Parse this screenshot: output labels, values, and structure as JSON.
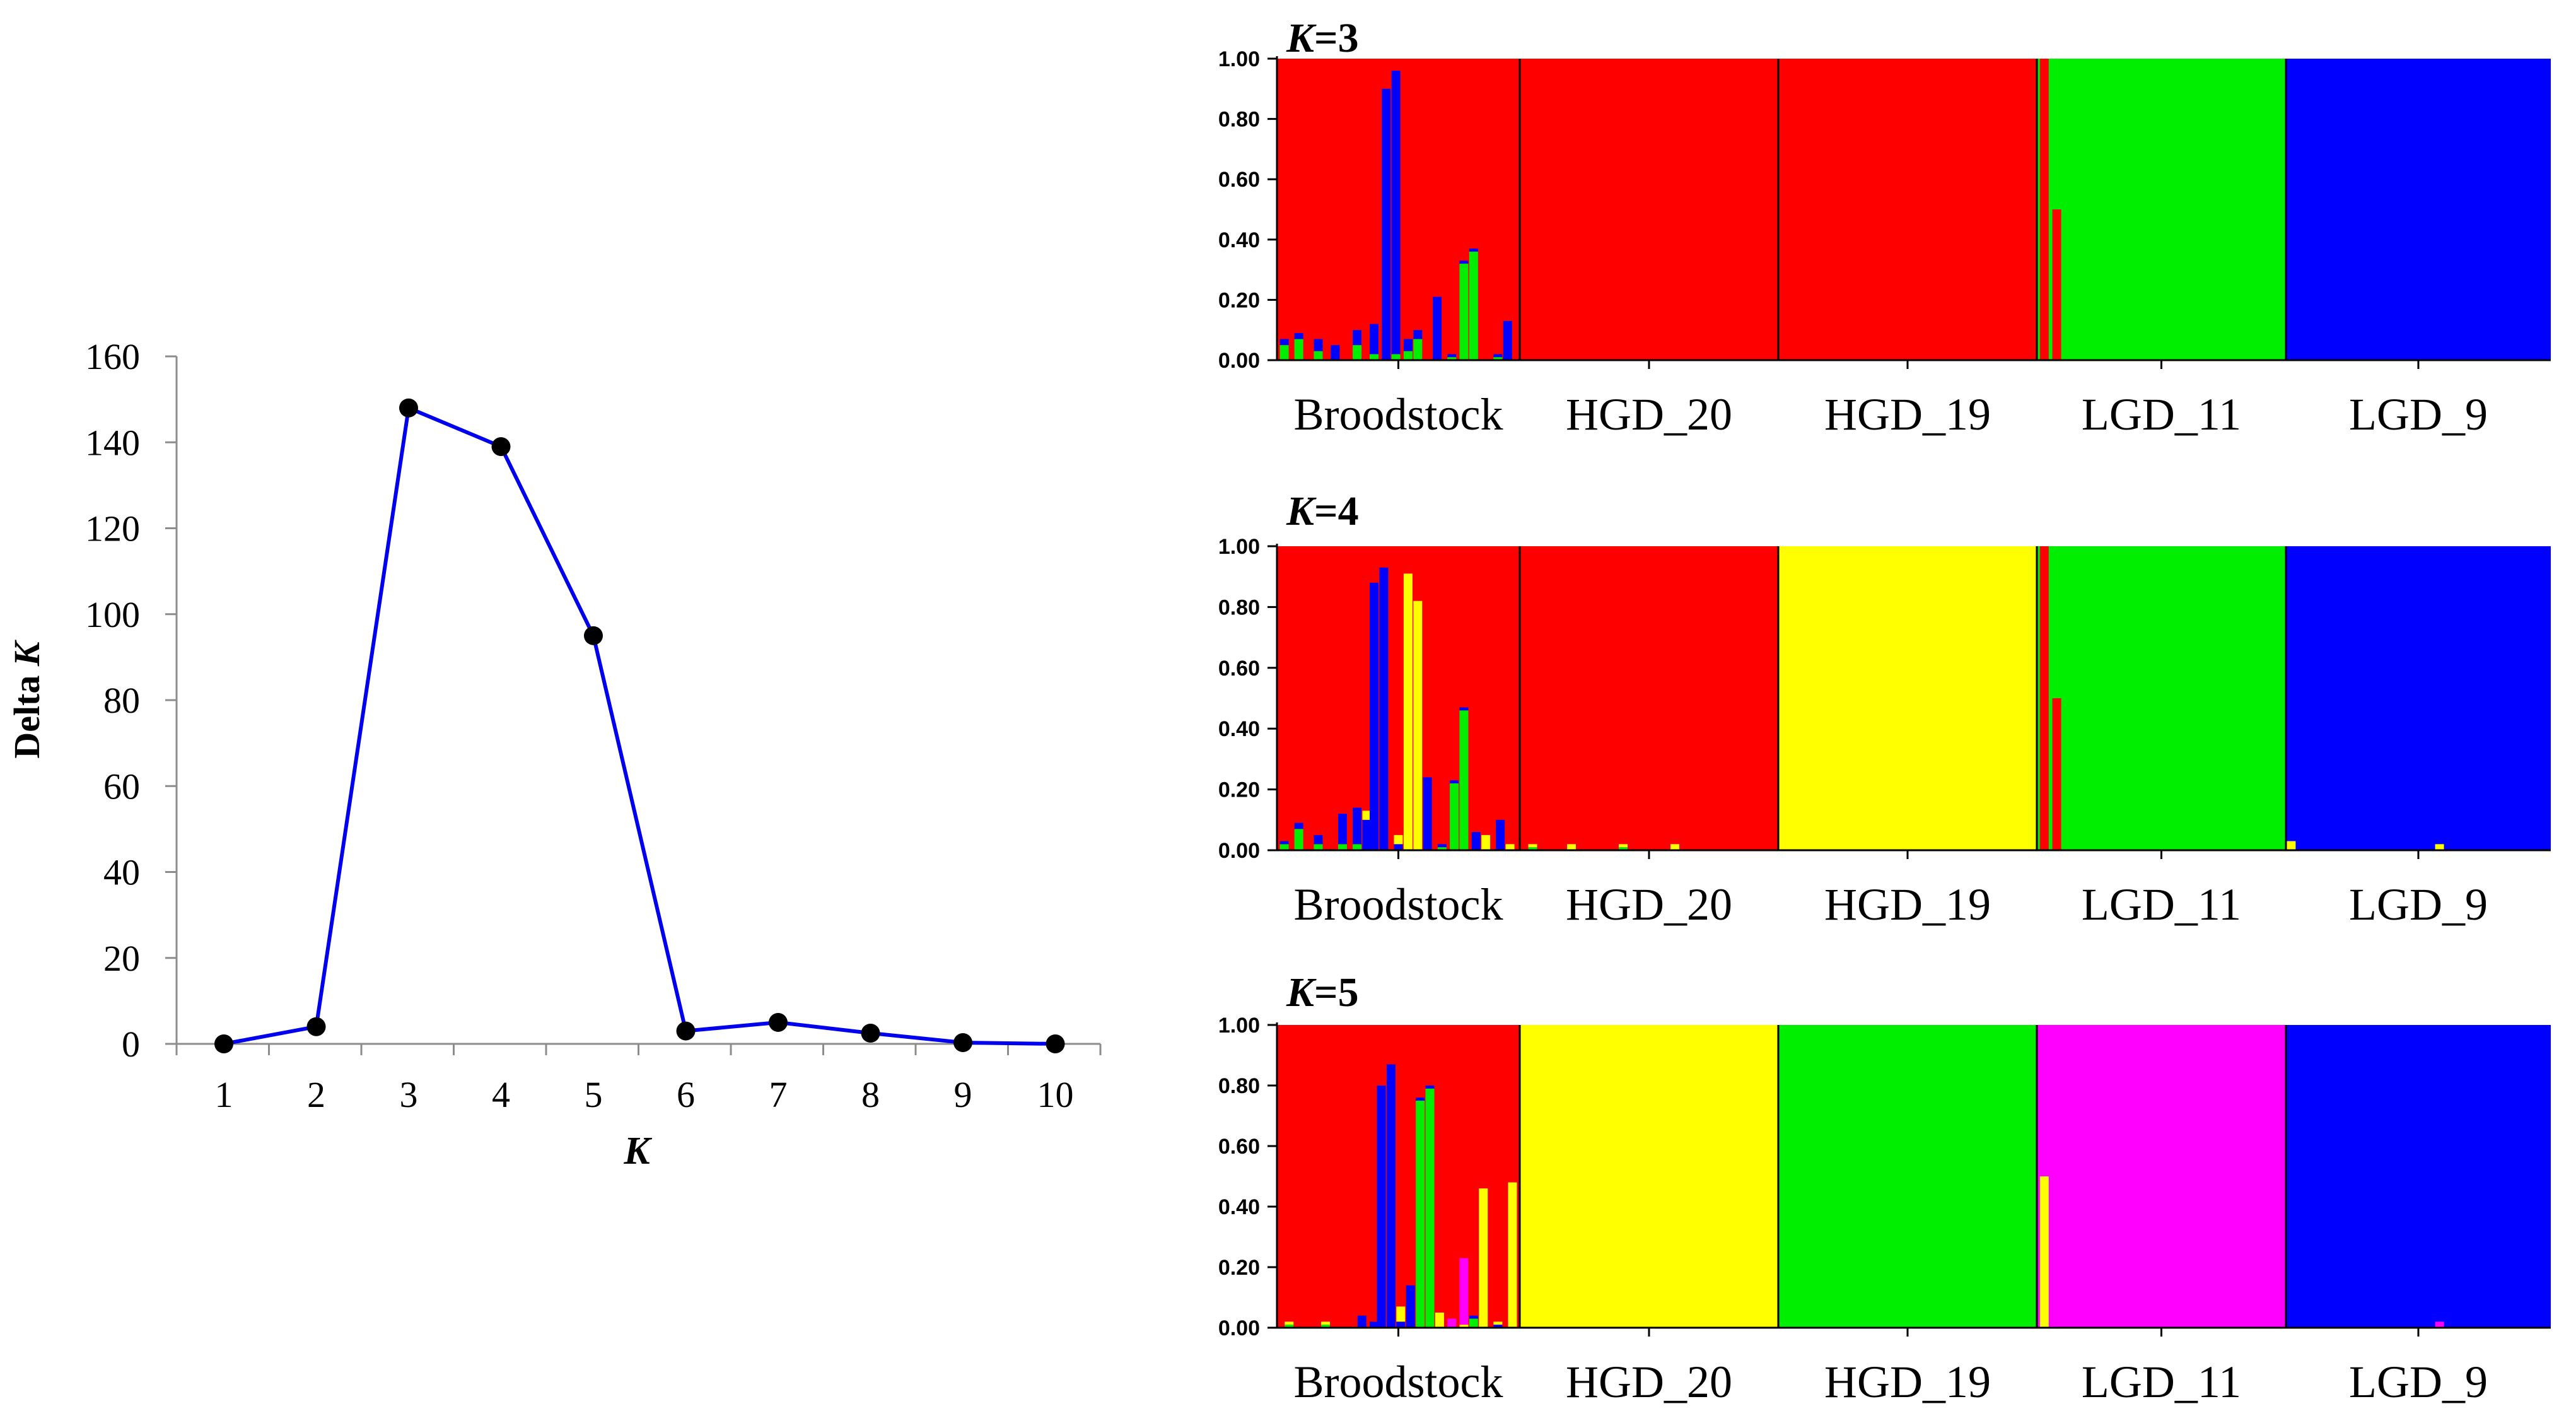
{
  "chart_data": [
    {
      "type": "line",
      "xlabel": "K",
      "ylabel_prefix": "Delta ",
      "ylabel_var": "K",
      "x": [
        1,
        2,
        3,
        4,
        5,
        6,
        7,
        8,
        9,
        10
      ],
      "x_tick_labels": [
        "1",
        "2",
        "3",
        "4",
        "5",
        "6",
        "7",
        "8",
        "9",
        "10"
      ],
      "y": [
        0,
        4,
        148,
        139,
        95,
        3,
        5,
        2.5,
        0.3,
        0
      ],
      "ylim": [
        0,
        160
      ],
      "y_tick_values": [
        0,
        20,
        40,
        60,
        80,
        100,
        120,
        140,
        160
      ],
      "y_tick_labels": [
        "0",
        "20",
        "40",
        "60",
        "80",
        "100",
        "120",
        "140",
        "160"
      ],
      "line_color": "#0000ee",
      "marker_color": "#000000"
    },
    {
      "type": "bar",
      "subtype": "stacked-admixture",
      "title_var": "K",
      "title_rest": "=3",
      "ylim": [
        0,
        1
      ],
      "y_tick_labels": [
        "0.00",
        "0.20",
        "0.40",
        "0.60",
        "0.80",
        "1.00"
      ],
      "populations": [
        "Broodstock",
        "HGD_20",
        "HGD_19",
        "LGD_11",
        "LGD_9"
      ],
      "cluster_colors": [
        "#ff0000",
        "#00ee00",
        "#0000ff"
      ],
      "population_base_cluster": [
        0,
        0,
        0,
        1,
        2
      ],
      "admixed_individuals": [
        {
          "pop": 0,
          "pos": 0.03,
          "fractions": {
            "1": 0.05,
            "2": 0.02
          }
        },
        {
          "pop": 0,
          "pos": 0.09,
          "fractions": {
            "1": 0.07,
            "2": 0.02
          }
        },
        {
          "pop": 0,
          "pos": 0.17,
          "fractions": {
            "1": 0.03,
            "2": 0.04
          }
        },
        {
          "pop": 0,
          "pos": 0.24,
          "fractions": {
            "2": 0.05
          }
        },
        {
          "pop": 0,
          "pos": 0.33,
          "fractions": {
            "1": 0.05,
            "2": 0.05
          }
        },
        {
          "pop": 0,
          "pos": 0.4,
          "fractions": {
            "1": 0.02,
            "2": 0.1
          }
        },
        {
          "pop": 0,
          "pos": 0.45,
          "fractions": {
            "2": 0.9
          }
        },
        {
          "pop": 0,
          "pos": 0.49,
          "fractions": {
            "1": 0.02,
            "2": 0.94
          }
        },
        {
          "pop": 0,
          "pos": 0.54,
          "fractions": {
            "1": 0.03,
            "2": 0.04
          }
        },
        {
          "pop": 0,
          "pos": 0.58,
          "fractions": {
            "1": 0.07,
            "2": 0.03
          }
        },
        {
          "pop": 0,
          "pos": 0.66,
          "fractions": {
            "2": 0.21
          }
        },
        {
          "pop": 0,
          "pos": 0.72,
          "fractions": {
            "1": 0.01,
            "2": 0.01
          }
        },
        {
          "pop": 0,
          "pos": 0.77,
          "fractions": {
            "1": 0.32,
            "2": 0.01
          }
        },
        {
          "pop": 0,
          "pos": 0.81,
          "fractions": {
            "1": 0.36,
            "2": 0.01
          }
        },
        {
          "pop": 0,
          "pos": 0.91,
          "fractions": {
            "1": 0.01,
            "2": 0.01
          }
        },
        {
          "pop": 0,
          "pos": 0.95,
          "fractions": {
            "2": 0.13
          }
        },
        {
          "pop": 3,
          "pos": 0.03,
          "fractions": {
            "0": 1.0
          }
        },
        {
          "pop": 3,
          "pos": 0.08,
          "fractions": {
            "0": 0.5
          }
        }
      ]
    },
    {
      "type": "bar",
      "subtype": "stacked-admixture",
      "title_var": "K",
      "title_rest": "=4",
      "ylim": [
        0,
        1
      ],
      "y_tick_labels": [
        "0.00",
        "0.20",
        "0.40",
        "0.60",
        "0.80",
        "1.00"
      ],
      "populations": [
        "Broodstock",
        "HGD_20",
        "HGD_19",
        "LGD_11",
        "LGD_9"
      ],
      "cluster_colors": [
        "#ff0000",
        "#00ee00",
        "#0000ff",
        "#ffff00"
      ],
      "population_base_cluster": [
        0,
        0,
        3,
        1,
        2
      ],
      "admixed_individuals": [
        {
          "pop": 0,
          "pos": 0.03,
          "fractions": {
            "1": 0.02,
            "2": 0.01
          }
        },
        {
          "pop": 0,
          "pos": 0.09,
          "fractions": {
            "1": 0.07,
            "2": 0.02
          }
        },
        {
          "pop": 0,
          "pos": 0.17,
          "fractions": {
            "1": 0.02,
            "2": 0.03
          }
        },
        {
          "pop": 0,
          "pos": 0.27,
          "fractions": {
            "1": 0.02,
            "2": 0.1
          }
        },
        {
          "pop": 0,
          "pos": 0.33,
          "fractions": {
            "1": 0.02,
            "2": 0.12
          }
        },
        {
          "pop": 0,
          "pos": 0.37,
          "fractions": {
            "3": 0.03,
            "2": 0.1
          }
        },
        {
          "pop": 0,
          "pos": 0.4,
          "fractions": {
            "2": 0.88
          }
        },
        {
          "pop": 0,
          "pos": 0.44,
          "fractions": {
            "2": 0.93
          }
        },
        {
          "pop": 0,
          "pos": 0.5,
          "fractions": {
            "3": 0.03,
            "2": 0.02
          }
        },
        {
          "pop": 0,
          "pos": 0.54,
          "fractions": {
            "3": 0.91
          }
        },
        {
          "pop": 0,
          "pos": 0.58,
          "fractions": {
            "3": 0.82
          }
        },
        {
          "pop": 0,
          "pos": 0.62,
          "fractions": {
            "2": 0.24
          }
        },
        {
          "pop": 0,
          "pos": 0.68,
          "fractions": {
            "1": 0.01,
            "2": 0.01
          }
        },
        {
          "pop": 0,
          "pos": 0.73,
          "fractions": {
            "1": 0.22,
            "2": 0.01
          }
        },
        {
          "pop": 0,
          "pos": 0.77,
          "fractions": {
            "1": 0.46,
            "2": 0.01
          }
        },
        {
          "pop": 0,
          "pos": 0.82,
          "fractions": {
            "2": 0.06
          }
        },
        {
          "pop": 0,
          "pos": 0.86,
          "fractions": {
            "3": 0.05
          }
        },
        {
          "pop": 0,
          "pos": 0.92,
          "fractions": {
            "2": 0.1
          }
        },
        {
          "pop": 0,
          "pos": 0.96,
          "fractions": {
            "3": 0.02
          }
        },
        {
          "pop": 1,
          "pos": 0.05,
          "fractions": {
            "3": 0.01,
            "1": 0.01
          }
        },
        {
          "pop": 1,
          "pos": 0.2,
          "fractions": {
            "3": 0.02
          }
        },
        {
          "pop": 1,
          "pos": 0.4,
          "fractions": {
            "3": 0.01,
            "1": 0.01
          }
        },
        {
          "pop": 1,
          "pos": 0.6,
          "fractions": {
            "3": 0.02
          }
        },
        {
          "pop": 3,
          "pos": 0.03,
          "fractions": {
            "0": 1.0
          }
        },
        {
          "pop": 3,
          "pos": 0.08,
          "fractions": {
            "0": 0.5
          }
        },
        {
          "pop": 4,
          "pos": 0.02,
          "fractions": {
            "3": 0.03
          }
        },
        {
          "pop": 4,
          "pos": 0.58,
          "fractions": {
            "3": 0.02
          }
        }
      ]
    },
    {
      "type": "bar",
      "subtype": "stacked-admixture",
      "title_var": "K",
      "title_rest": "=5",
      "ylim": [
        0,
        1
      ],
      "y_tick_labels": [
        "0.00",
        "0.20",
        "0.40",
        "0.60",
        "0.80",
        "1.00"
      ],
      "populations": [
        "Broodstock",
        "HGD_20",
        "HGD_19",
        "LGD_11",
        "LGD_9"
      ],
      "cluster_colors": [
        "#ff0000",
        "#00ee00",
        "#0000ff",
        "#ffff00",
        "#ff00ff"
      ],
      "population_base_cluster": [
        0,
        3,
        1,
        4,
        2
      ],
      "admixed_individuals": [
        {
          "pop": 0,
          "pos": 0.05,
          "fractions": {
            "1": 0.01,
            "3": 0.01
          }
        },
        {
          "pop": 0,
          "pos": 0.2,
          "fractions": {
            "1": 0.01,
            "3": 0.01
          }
        },
        {
          "pop": 0,
          "pos": 0.35,
          "fractions": {
            "2": 0.04
          }
        },
        {
          "pop": 0,
          "pos": 0.4,
          "fractions": {
            "2": 0.02
          }
        },
        {
          "pop": 0,
          "pos": 0.43,
          "fractions": {
            "2": 0.8
          }
        },
        {
          "pop": 0,
          "pos": 0.47,
          "fractions": {
            "2": 0.87
          }
        },
        {
          "pop": 0,
          "pos": 0.51,
          "fractions": {
            "3": 0.05,
            "2": 0.02
          }
        },
        {
          "pop": 0,
          "pos": 0.55,
          "fractions": {
            "2": 0.14
          }
        },
        {
          "pop": 0,
          "pos": 0.59,
          "fractions": {
            "1": 0.75,
            "2": 0.01
          }
        },
        {
          "pop": 0,
          "pos": 0.63,
          "fractions": {
            "1": 0.79,
            "2": 0.01
          }
        },
        {
          "pop": 0,
          "pos": 0.67,
          "fractions": {
            "3": 0.05
          }
        },
        {
          "pop": 0,
          "pos": 0.72,
          "fractions": {
            "4": 0.03
          }
        },
        {
          "pop": 0,
          "pos": 0.77,
          "fractions": {
            "4": 0.22,
            "3": 0.01
          }
        },
        {
          "pop": 0,
          "pos": 0.81,
          "fractions": {
            "1": 0.03,
            "2": 0.01
          }
        },
        {
          "pop": 0,
          "pos": 0.85,
          "fractions": {
            "3": 0.46
          }
        },
        {
          "pop": 0,
          "pos": 0.91,
          "fractions": {
            "3": 0.01,
            "2": 0.01
          }
        },
        {
          "pop": 0,
          "pos": 0.97,
          "fractions": {
            "3": 0.48
          }
        },
        {
          "pop": 3,
          "pos": 0.03,
          "fractions": {
            "3": 0.5
          }
        },
        {
          "pop": 4,
          "pos": 0.58,
          "fractions": {
            "4": 0.02
          }
        }
      ]
    }
  ]
}
